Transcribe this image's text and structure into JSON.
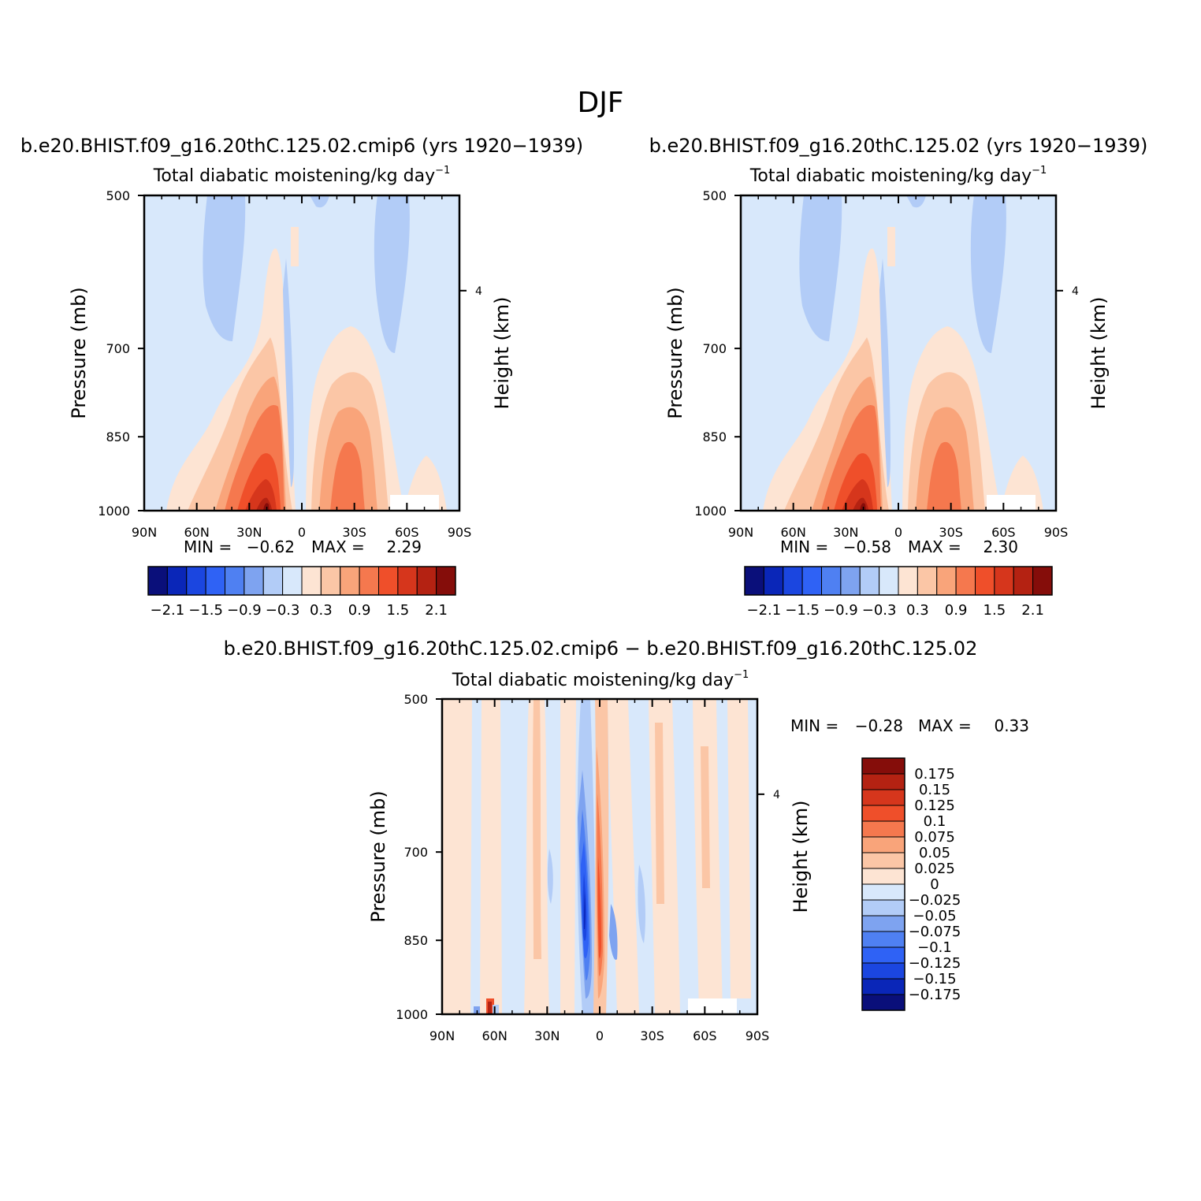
{
  "page_title": "DJF",
  "colors": {
    "full_colormap": [
      "#0a0f7a",
      "#0a26b8",
      "#1b46e0",
      "#2f62f5",
      "#4f80f2",
      "#7ea3f0",
      "#b2ccf7",
      "#d8e8fb",
      "#fde4d3",
      "#fbc6a6",
      "#f9a47a",
      "#f5784e",
      "#ef4f2a",
      "#d6361c",
      "#b42212",
      "#850d0a"
    ],
    "diff_colormap": [
      "#0a0f7a",
      "#0a26b8",
      "#1b46e0",
      "#2f62f5",
      "#4f80f2",
      "#7ea3f0",
      "#b2ccf7",
      "#d8e8fb",
      "#fde4d3",
      "#fbc6a6",
      "#f9a47a",
      "#f5784e",
      "#ef4f2a",
      "#d6361c",
      "#b42212",
      "#850d0a"
    ]
  },
  "chart_data": [
    {
      "type": "heatmap",
      "panel": "top-left",
      "title": "b.e20.BHIST.f09_g16.20thC.125.02.cmip6 (yrs 1920−1939)",
      "subtitle": "Total diabatic moistening/kg day",
      "subtitle_sup": "−1",
      "xlabel": "",
      "ylabel": "Pressure (mb)",
      "y2label": "Height (km)",
      "x_ticks": [
        "90N",
        "60N",
        "30N",
        "0",
        "30S",
        "60S",
        "90S"
      ],
      "y_ticks": [
        "500",
        "700",
        "850",
        "1000"
      ],
      "y2_ticks": [
        "4"
      ],
      "xlim": [
        90,
        -90
      ],
      "ylim": [
        1000,
        500
      ],
      "y_scale": "log-pressure",
      "min_label": "MIN =",
      "min_value": "−0.62",
      "max_label": "MAX =",
      "max_value": "2.29",
      "colorbar_labels": [
        "−2.1",
        "−1.5",
        "−0.9",
        "−0.3",
        "0.3",
        "0.9",
        "1.5",
        "2.1"
      ],
      "colorbar_levels": [
        -2.1,
        -1.8,
        -1.5,
        -1.2,
        -0.9,
        -0.6,
        -0.3,
        0,
        0.3,
        0.6,
        0.9,
        1.2,
        1.5,
        1.8,
        2.1
      ]
    },
    {
      "type": "heatmap",
      "panel": "top-right",
      "title": "b.e20.BHIST.f09_g16.20thC.125.02 (yrs 1920−1939)",
      "subtitle": "Total diabatic moistening/kg day",
      "subtitle_sup": "−1",
      "xlabel": "",
      "ylabel": "Pressure (mb)",
      "y2label": "Height (km)",
      "x_ticks": [
        "90N",
        "60N",
        "30N",
        "0",
        "30S",
        "60S",
        "90S"
      ],
      "y_ticks": [
        "500",
        "700",
        "850",
        "1000"
      ],
      "y2_ticks": [
        "4"
      ],
      "xlim": [
        90,
        -90
      ],
      "ylim": [
        1000,
        500
      ],
      "y_scale": "log-pressure",
      "min_label": "MIN =",
      "min_value": "−0.58",
      "max_label": "MAX =",
      "max_value": "2.30",
      "colorbar_labels": [
        "−2.1",
        "−1.5",
        "−0.9",
        "−0.3",
        "0.3",
        "0.9",
        "1.5",
        "2.1"
      ],
      "colorbar_levels": [
        -2.1,
        -1.8,
        -1.5,
        -1.2,
        -0.9,
        -0.6,
        -0.3,
        0,
        0.3,
        0.6,
        0.9,
        1.2,
        1.5,
        1.8,
        2.1
      ]
    },
    {
      "type": "heatmap",
      "panel": "bottom",
      "title": "b.e20.BHIST.f09_g16.20thC.125.02.cmip6 − b.e20.BHIST.f09_g16.20thC.125.02",
      "subtitle": "Total diabatic moistening/kg day",
      "subtitle_sup": "−1",
      "xlabel": "",
      "ylabel": "Pressure (mb)",
      "y2label": "Height (km)",
      "x_ticks": [
        "90N",
        "60N",
        "30N",
        "0",
        "30S",
        "60S",
        "90S"
      ],
      "y_ticks": [
        "500",
        "700",
        "850",
        "1000"
      ],
      "y2_ticks": [
        "4"
      ],
      "xlim": [
        90,
        -90
      ],
      "ylim": [
        1000,
        500
      ],
      "y_scale": "log-pressure",
      "min_label": "MIN =",
      "min_value": "−0.28",
      "max_label": "MAX =",
      "max_value": "0.33",
      "colorbar_labels": [
        "0.175",
        "0.15",
        "0.125",
        "0.1",
        "0.075",
        "0.05",
        "0.025",
        "0",
        "−0.025",
        "−0.05",
        "−0.075",
        "−0.1",
        "−0.125",
        "−0.15",
        "−0.175"
      ],
      "colorbar_levels": [
        0.175,
        0.15,
        0.125,
        0.1,
        0.075,
        0.05,
        0.025,
        0,
        -0.025,
        -0.05,
        -0.075,
        -0.1,
        -0.125,
        -0.15,
        -0.175
      ]
    }
  ]
}
